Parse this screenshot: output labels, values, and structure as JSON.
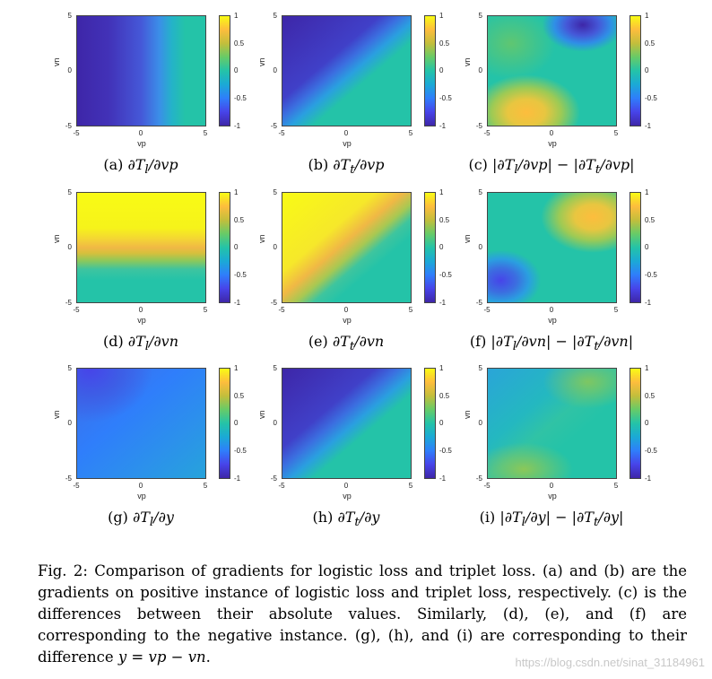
{
  "axes": {
    "xlabel": "vp",
    "ylabel": "vn",
    "xticks": [
      "-5",
      "0",
      "5"
    ],
    "yticks": [
      "5",
      "0",
      "-5"
    ],
    "cbar_ticks": [
      "1",
      "0.5",
      "0",
      "-0.5",
      "-1"
    ]
  },
  "colormap": [
    "#3e26a8",
    "#4744e9",
    "#2f7efb",
    "#1ba9d6",
    "#24c3a8",
    "#67cb68",
    "#c2be3c",
    "#fdbd3d",
    "#f9fb15"
  ],
  "panels": [
    {
      "id": "a",
      "label": "(a)",
      "math": "∂T",
      "sub": "l",
      "den": "/∂vp",
      "suffix": ""
    },
    {
      "id": "b",
      "label": "(b)",
      "math": "∂T",
      "sub": "t",
      "den": "/∂vp",
      "suffix": ""
    },
    {
      "id": "c",
      "label": "(c)",
      "math": "|∂T",
      "sub": "l",
      "den": "/∂vp| − |∂T",
      "sub2": "t",
      "den2": "/∂vp|"
    },
    {
      "id": "d",
      "label": "(d)",
      "math": "∂T",
      "sub": "l",
      "den": "/∂vn",
      "suffix": ""
    },
    {
      "id": "e",
      "label": "(e)",
      "math": "∂T",
      "sub": "t",
      "den": "/∂vn",
      "suffix": ""
    },
    {
      "id": "f",
      "label": "(f)",
      "math": "|∂T",
      "sub": "l",
      "den": "/∂vn| − |∂T",
      "sub2": "t",
      "den2": "/∂vn|"
    },
    {
      "id": "g",
      "label": "(g)",
      "math": "∂T",
      "sub": "l",
      "den": "/∂y",
      "suffix": ""
    },
    {
      "id": "h",
      "label": "(h)",
      "math": "∂T",
      "sub": "t",
      "den": "/∂y",
      "suffix": ""
    },
    {
      "id": "i",
      "label": "(i)",
      "math": "|∂T",
      "sub": "l",
      "den": "/∂y| − |∂T",
      "sub2": "t",
      "den2": "/∂y|"
    }
  ],
  "figure_caption": {
    "text": "Fig. 2: Comparison of gradients for logistic loss and triplet loss. (a) and (b) are the gradients on positive instance of logistic loss and triplet loss, respectively. (c) is the differences between their absolute values. Similarly, (d), (e), and (f) are corresponding to the negative instance. (g), (h), and (i) are corresponding to their difference ",
    "math": "y = vp − vn",
    "end": "."
  },
  "watermark": "https://blog.csdn.net/sinat_31184961"
}
